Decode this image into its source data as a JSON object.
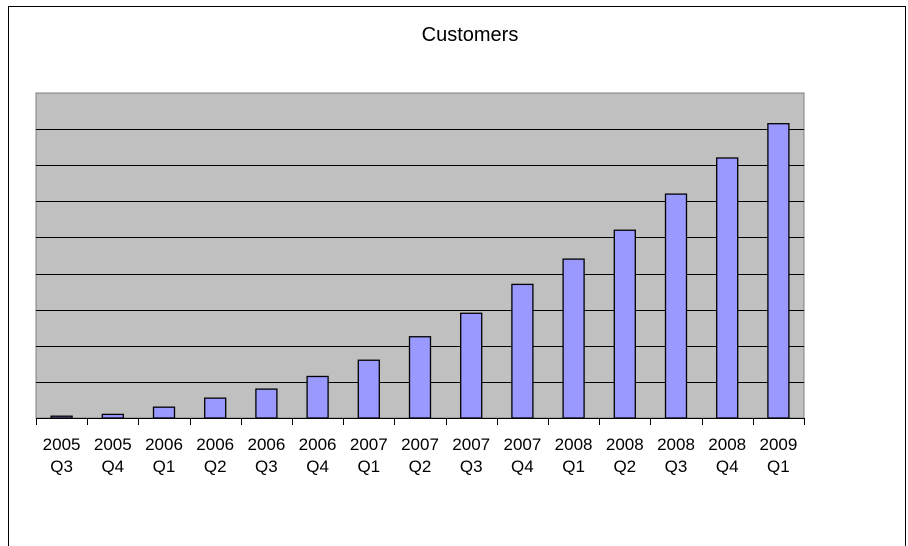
{
  "chart_data": {
    "type": "bar",
    "title": "Customers",
    "xlabel": "",
    "ylabel": "",
    "categories": [
      [
        "2005",
        "Q3"
      ],
      [
        "2005",
        "Q4"
      ],
      [
        "2006",
        "Q1"
      ],
      [
        "2006",
        "Q2"
      ],
      [
        "2006",
        "Q3"
      ],
      [
        "2006",
        "Q4"
      ],
      [
        "2007",
        "Q1"
      ],
      [
        "2007",
        "Q2"
      ],
      [
        "2007",
        "Q3"
      ],
      [
        "2007",
        "Q4"
      ],
      [
        "2008",
        "Q1"
      ],
      [
        "2008",
        "Q2"
      ],
      [
        "2008",
        "Q3"
      ],
      [
        "2008",
        "Q4"
      ],
      [
        "2009",
        "Q1"
      ]
    ],
    "values": [
      0.05,
      0.1,
      0.3,
      0.55,
      0.8,
      1.15,
      1.6,
      2.25,
      2.9,
      3.7,
      4.4,
      5.2,
      6.2,
      7.2,
      8.15
    ],
    "ylim": [
      0,
      9
    ],
    "y_tick_labels_visible": false,
    "grid": true,
    "legend": "none",
    "colors": {
      "bar_fill": "#9999ff",
      "bar_stroke": "#000000",
      "plot_background": "#c0c0c0",
      "gridline": "#000000"
    }
  }
}
